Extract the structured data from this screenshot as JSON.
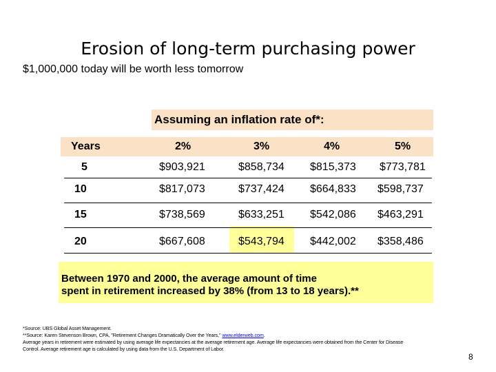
{
  "title": "Erosion of long-term purchasing power",
  "subtitle": "$1,000,000 today will be worth less tomorrow",
  "table": {
    "inflation_header": "Assuming an inflation rate of*:",
    "columns": [
      "Years",
      "2%",
      "3%",
      "4%",
      "5%"
    ],
    "rows": [
      [
        "5",
        "$903,921",
        "$858,734",
        "$815,373",
        "$773,781"
      ],
      [
        "10",
        "$817,073",
        "$737,424",
        "$664,833",
        "$598,737"
      ],
      [
        "15",
        "$738,569",
        "$633,251",
        "$542,086",
        "$463,291"
      ],
      [
        "20",
        "$667,608",
        "$543,794",
        "$442,002",
        "$358,486"
      ]
    ],
    "highlight_color": "#ffff99",
    "header_color": "#fbe1c5"
  },
  "note": {
    "line1": "Between 1970 and 2000, the average amount of time",
    "line2": "spent in retirement increased by 38% (from 13 to 18 years).**"
  },
  "footnotes": {
    "f1": "*Source: UBS Global Asset Management.",
    "f2_prefix": "**Source:  Karen Stevenson Brown, CPA, \"Retirement Changes Dramatically Over the Years,\" ",
    "f2_link": "www.elderweb.com",
    "f2_suffix": ".",
    "f3": "Average years in retirement were estimated by using average life expectancies at the average retirement age. Average life expectancies were obtained from the Center for Disease",
    "f4": "Control. Average retirement age is calculated by using data from the U.S. Department of Labor."
  },
  "page_number": "8"
}
